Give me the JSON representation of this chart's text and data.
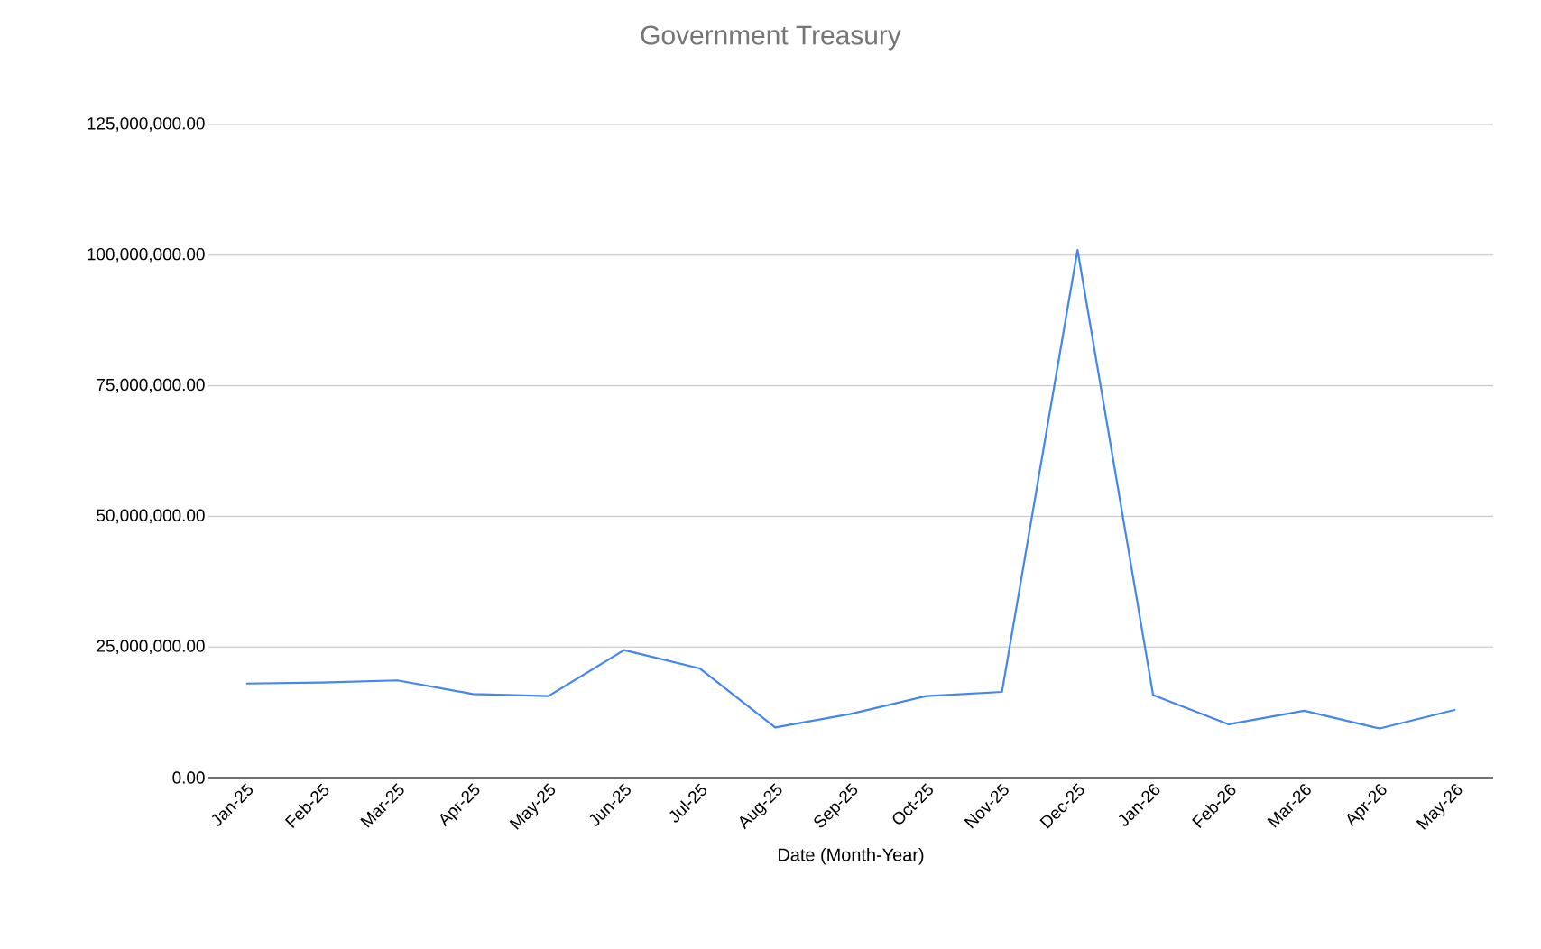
{
  "chart_data": {
    "type": "line",
    "title": "Government Treasury",
    "xlabel": "Date (Month-Year)",
    "categories": [
      "Jan-25",
      "Feb-25",
      "Mar-25",
      "Apr-25",
      "May-25",
      "Jun-25",
      "Jul-25",
      "Aug-25",
      "Sep-25",
      "Oct-25",
      "Nov-25",
      "Dec-25",
      "Jan-26",
      "Feb-26",
      "Mar-26",
      "Apr-26",
      "May-26"
    ],
    "series": [
      {
        "color": "#4285f4",
        "values": [
          18000000,
          18200000,
          18600000,
          16000000,
          15600000,
          24400000,
          20900000,
          9600000,
          12200000,
          15600000,
          16400000,
          101000000,
          15800000,
          10200000,
          12800000,
          9400000,
          13000000
        ]
      }
    ],
    "ylim": [
      0,
      125000000
    ],
    "yticks": [
      {
        "value": 0,
        "label": "0.00"
      },
      {
        "value": 25000000,
        "label": "25,000,000.00"
      },
      {
        "value": 50000000,
        "label": "50,000,000.00"
      },
      {
        "value": 75000000,
        "label": "75,000,000.00"
      },
      {
        "value": 100000000,
        "label": "100,000,000.00"
      },
      {
        "value": 125000000,
        "label": "125,000,000.00"
      }
    ],
    "grid": "y",
    "marker": "none",
    "line_style": "solid"
  }
}
